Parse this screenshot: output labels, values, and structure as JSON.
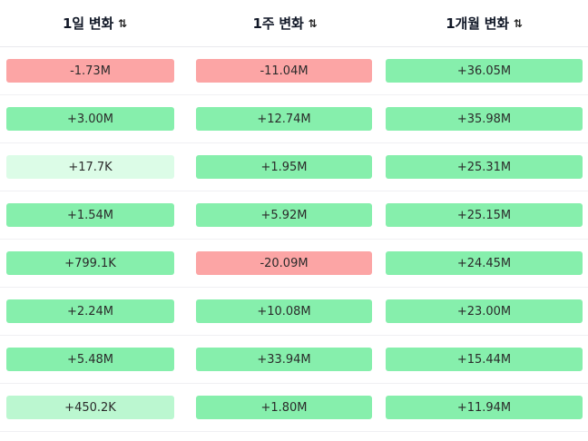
{
  "header": {
    "col1": "1일 변화",
    "col2": "1주 변화",
    "col3": "1개월 변화",
    "sort_glyph": "⇅"
  },
  "colors": {
    "negative": "#fca5a5",
    "positive": "#86efac",
    "positive_light": "#dcfce7",
    "positive_mid": "#bbf7d0"
  },
  "rows": [
    {
      "d1": {
        "text": "-1.73M",
        "tone": "neg"
      },
      "w1": {
        "text": "-11.04M",
        "tone": "neg"
      },
      "m1": {
        "text": "+36.05M",
        "tone": "pos"
      }
    },
    {
      "d1": {
        "text": "+3.00M",
        "tone": "pos"
      },
      "w1": {
        "text": "+12.74M",
        "tone": "pos"
      },
      "m1": {
        "text": "+35.98M",
        "tone": "pos"
      }
    },
    {
      "d1": {
        "text": "+17.7K",
        "tone": "pos-light"
      },
      "w1": {
        "text": "+1.95M",
        "tone": "pos"
      },
      "m1": {
        "text": "+25.31M",
        "tone": "pos"
      }
    },
    {
      "d1": {
        "text": "+1.54M",
        "tone": "pos"
      },
      "w1": {
        "text": "+5.92M",
        "tone": "pos"
      },
      "m1": {
        "text": "+25.15M",
        "tone": "pos"
      }
    },
    {
      "d1": {
        "text": "+799.1K",
        "tone": "pos"
      },
      "w1": {
        "text": "-20.09M",
        "tone": "neg"
      },
      "m1": {
        "text": "+24.45M",
        "tone": "pos"
      }
    },
    {
      "d1": {
        "text": "+2.24M",
        "tone": "pos"
      },
      "w1": {
        "text": "+10.08M",
        "tone": "pos"
      },
      "m1": {
        "text": "+23.00M",
        "tone": "pos"
      }
    },
    {
      "d1": {
        "text": "+5.48M",
        "tone": "pos"
      },
      "w1": {
        "text": "+33.94M",
        "tone": "pos"
      },
      "m1": {
        "text": "+15.44M",
        "tone": "pos"
      }
    },
    {
      "d1": {
        "text": "+450.2K",
        "tone": "pos-mid"
      },
      "w1": {
        "text": "+1.80M",
        "tone": "pos"
      },
      "m1": {
        "text": "+11.94M",
        "tone": "pos"
      }
    }
  ]
}
